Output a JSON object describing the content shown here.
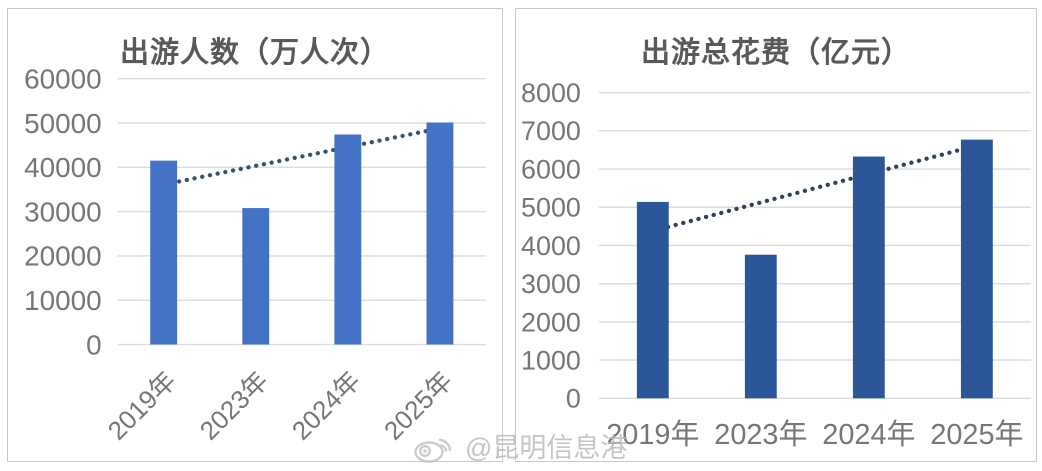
{
  "style": {
    "grid_color": "#dcdcdc",
    "axis_label_color": "#767676",
    "title_color": "#595959",
    "panel_border_color": "#c9c7c7",
    "background": "#ffffff"
  },
  "watermark": {
    "icon": "weibo-icon",
    "text": "@昆明信息港",
    "color": "#bcbcbc"
  },
  "chart_data": [
    {
      "type": "bar",
      "title": "出游人数（万人次）",
      "categories": [
        "2019年",
        "2023年",
        "2024年",
        "2025年"
      ],
      "values": [
        41500,
        30800,
        47400,
        50100
      ],
      "xlabel": "",
      "ylabel": "",
      "ylim": [
        0,
        60000
      ],
      "ytick_step": 10000,
      "grid": true,
      "legend": "none",
      "bar_color": "#4472c4",
      "x_label_rotation": -45,
      "trend": {
        "type": "linear",
        "style": "dotted",
        "color": "#3a5269"
      }
    },
    {
      "type": "bar",
      "title": "出游总花费（亿元）",
      "categories": [
        "2019年",
        "2023年",
        "2024年",
        "2025年"
      ],
      "values": [
        5139,
        3758,
        6327,
        6770
      ],
      "xlabel": "",
      "ylabel": "",
      "ylim": [
        0,
        8000
      ],
      "ytick_step": 1000,
      "grid": true,
      "legend": "none",
      "bar_color": "#2d5699",
      "x_label_rotation": 0,
      "trend": {
        "type": "linear",
        "style": "dotted",
        "color": "#2f4156"
      }
    }
  ]
}
